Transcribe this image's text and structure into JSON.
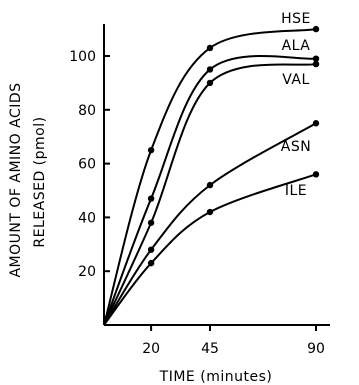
{
  "chart_data": {
    "type": "line",
    "xlabel": "TIME (minutes)",
    "ylabel": "AMOUNT OF AMINO ACIDS RELEASED (pmol)",
    "ylabel_lines": [
      "AMOUNT OF AMINO ACIDS",
      "RELEASED (pmol)"
    ],
    "xlim": [
      0,
      90
    ],
    "ylim": [
      0,
      110
    ],
    "xticks": [
      20,
      45,
      90
    ],
    "yticks": [
      20,
      40,
      60,
      80,
      100
    ],
    "grid": false,
    "series": [
      {
        "name": "HSE",
        "x": [
          0,
          20,
          45,
          90
        ],
        "y": [
          0,
          65,
          103,
          110
        ]
      },
      {
        "name": "ALA",
        "x": [
          0,
          20,
          45,
          90
        ],
        "y": [
          0,
          47,
          95,
          99
        ]
      },
      {
        "name": "VAL",
        "x": [
          0,
          20,
          45,
          90
        ],
        "y": [
          0,
          38,
          90,
          97
        ]
      },
      {
        "name": "ASN",
        "x": [
          0,
          20,
          45,
          90
        ],
        "y": [
          0,
          28,
          52,
          75
        ]
      },
      {
        "name": "ILE",
        "x": [
          0,
          20,
          45,
          90
        ],
        "y": [
          0,
          23,
          42,
          56
        ]
      }
    ]
  }
}
